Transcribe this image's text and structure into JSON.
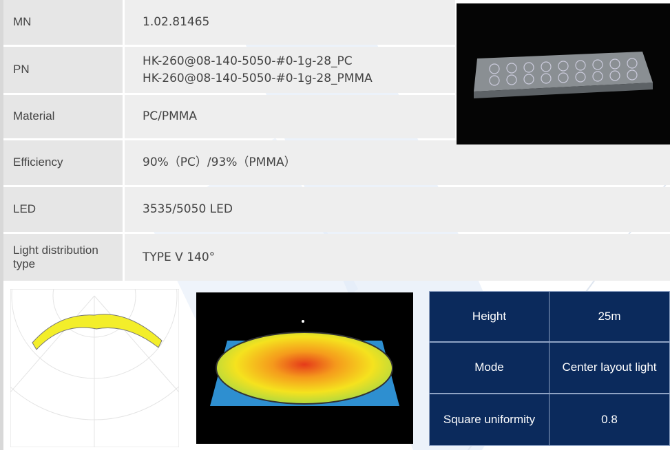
{
  "spec_table": {
    "rows": [
      {
        "label": "MN",
        "values": [
          "1.02.81465"
        ]
      },
      {
        "label": "PN",
        "values": [
          "HK-260@08-140-5050-#0-1g-28_PC",
          "HK-260@08-140-5050-#0-1g-28_PMMA"
        ]
      },
      {
        "label": "Material",
        "values": [
          "PC/PMMA"
        ]
      },
      {
        "label": "Efficiency",
        "values": [
          "90%（PC）/93%（PMMA）"
        ]
      },
      {
        "label": "LED",
        "values": [
          "3535/5050 LED"
        ]
      },
      {
        "label": "Light distribution type",
        "values": [
          "TYPE V 140°"
        ]
      }
    ]
  },
  "simulation_table": {
    "rows": [
      {
        "label": "Height",
        "value": "25m"
      },
      {
        "label": "Mode",
        "value": "Center layout light"
      },
      {
        "label": "Square uniformity",
        "value": "0.8"
      }
    ]
  }
}
